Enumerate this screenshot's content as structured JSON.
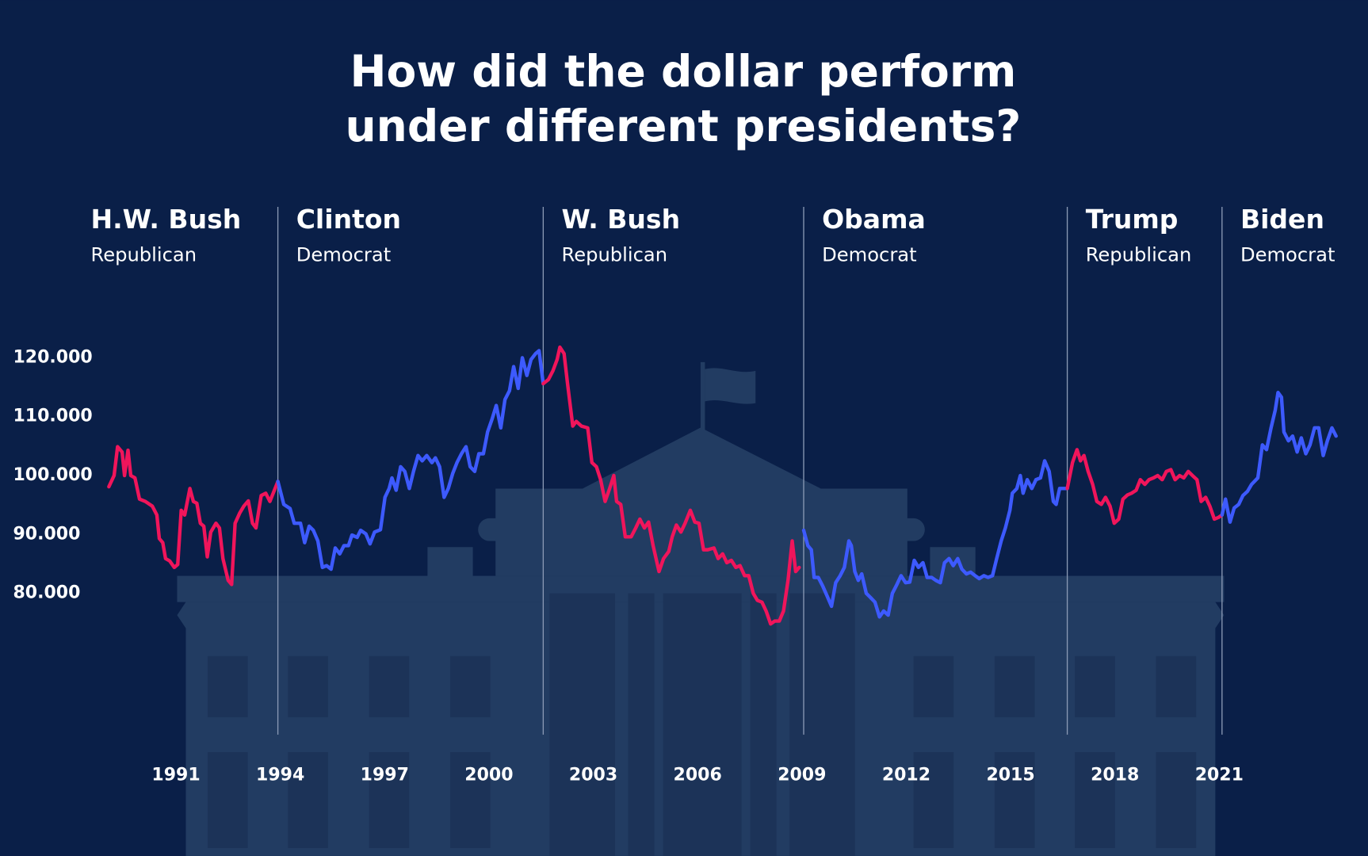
{
  "chart_data": {
    "type": "line",
    "title": [
      "How did the dollar perform",
      "under different presidents?"
    ],
    "xlim": [
      1989,
      2024.5
    ],
    "xticks": [
      1991,
      1994,
      1997,
      2000,
      2003,
      2006,
      2009,
      2012,
      2015,
      2018,
      2021
    ],
    "ylim": [
      60,
      130
    ],
    "yticks": [
      {
        "value": 120,
        "label": "120.000"
      },
      {
        "value": 110,
        "label": "110.000"
      },
      {
        "value": 100,
        "label": "100.000"
      },
      {
        "value": 90,
        "label": "90.000"
      },
      {
        "value": 80,
        "label": "80.000"
      }
    ],
    "grid": false,
    "series": [
      {
        "name": "H.W. Bush",
        "party": "Republican",
        "color": "#f0155b",
        "x": [
          1989.07,
          1989.22,
          1989.32,
          1989.45,
          1989.52,
          1989.62,
          1989.7,
          1989.82,
          1989.95,
          1990.12,
          1990.32,
          1990.45,
          1990.52,
          1990.62,
          1990.7,
          1990.82,
          1990.95,
          1991.05,
          1991.15,
          1991.25,
          1991.4,
          1991.5,
          1991.6,
          1991.7,
          1991.8,
          1991.9,
          1992.0,
          1992.15,
          1992.25,
          1992.35,
          1992.5,
          1992.6,
          1992.7,
          1992.83,
          1992.95,
          1993.08,
          1993.2,
          1993.3,
          1993.45,
          1993.58,
          1993.7,
          1993.93
        ],
        "values": [
          98.1,
          100.0,
          104.9,
          104.0,
          100.0,
          104.3,
          100.0,
          99.6,
          96.0,
          95.6,
          94.8,
          93.3,
          89.3,
          88.6,
          85.9,
          85.5,
          84.4,
          84.9,
          94.1,
          93.3,
          97.8,
          95.6,
          95.3,
          91.9,
          91.4,
          86.2,
          90.4,
          91.9,
          91.1,
          85.9,
          82.2,
          81.5,
          91.9,
          93.6,
          94.8,
          95.7,
          91.9,
          91.1,
          96.6,
          97.0,
          95.6,
          99.0
        ]
      },
      {
        "name": "Clinton",
        "party": "Democrat",
        "color": "#3d5afe",
        "x": [
          1993.93,
          1994.1,
          1994.28,
          1994.4,
          1994.58,
          1994.7,
          1994.83,
          1994.95,
          1995.08,
          1995.21,
          1995.33,
          1995.46,
          1995.58,
          1995.71,
          1995.83,
          1995.96,
          1996.06,
          1996.21,
          1996.31,
          1996.46,
          1996.58,
          1996.71,
          1996.88,
          1997.01,
          1997.13,
          1997.21,
          1997.33,
          1997.46,
          1997.58,
          1997.71,
          1997.83,
          1997.96,
          1998.08,
          1998.21,
          1998.36,
          1998.46,
          1998.58,
          1998.71,
          1998.83,
          1998.96,
          1999.08,
          1999.21,
          1999.34,
          1999.46,
          1999.59,
          1999.71,
          1999.84,
          1999.96,
          2000.09,
          2000.21,
          2000.34,
          2000.46,
          2000.59,
          2000.71,
          2000.84,
          2000.96,
          2001.09,
          2001.21,
          2001.34,
          2001.44,
          2001.56
        ],
        "values": [
          99.0,
          95.1,
          94.4,
          91.9,
          91.9,
          88.6,
          91.4,
          90.7,
          88.9,
          84.4,
          84.7,
          84.1,
          87.7,
          86.7,
          88.1,
          88.1,
          89.9,
          89.5,
          90.7,
          90.1,
          88.4,
          90.4,
          90.8,
          96.3,
          97.8,
          99.6,
          97.5,
          101.5,
          100.7,
          97.8,
          100.7,
          103.4,
          102.5,
          103.4,
          102.2,
          103.0,
          101.5,
          96.3,
          97.8,
          100.4,
          102.2,
          103.7,
          104.9,
          101.5,
          100.7,
          103.7,
          103.7,
          107.4,
          109.6,
          111.9,
          108.1,
          112.9,
          114.4,
          118.5,
          114.8,
          120.0,
          117.0,
          119.7,
          120.7,
          121.2,
          115.6
        ]
      },
      {
        "name": "W. Bush",
        "party": "Republican",
        "color": "#f0155b",
        "x": [
          2001.56,
          2001.71,
          2001.84,
          2001.96,
          2002.04,
          2002.16,
          2002.26,
          2002.41,
          2002.51,
          2002.66,
          2002.84,
          2002.96,
          2003.09,
          2003.21,
          2003.34,
          2003.47,
          2003.59,
          2003.67,
          2003.79,
          2003.92,
          2004.09,
          2004.22,
          2004.34,
          2004.47,
          2004.59,
          2004.72,
          2004.89,
          2005.02,
          2005.17,
          2005.27,
          2005.39,
          2005.52,
          2005.64,
          2005.79,
          2005.92,
          2006.04,
          2006.17,
          2006.29,
          2006.47,
          2006.59,
          2006.72,
          2006.84,
          2006.97,
          2007.1,
          2007.22,
          2007.35,
          2007.47,
          2007.6,
          2007.72,
          2007.85,
          2007.97,
          2008.1,
          2008.22,
          2008.35,
          2008.47,
          2008.6,
          2008.72,
          2008.82,
          2008.92
        ],
        "values": [
          115.6,
          116.3,
          117.8,
          119.7,
          121.8,
          120.7,
          115.6,
          108.4,
          109.2,
          108.4,
          108.1,
          102.2,
          101.5,
          99.3,
          95.6,
          97.8,
          100.0,
          95.6,
          95.1,
          89.6,
          89.6,
          91.1,
          92.6,
          91.1,
          92.1,
          88.1,
          83.7,
          85.9,
          87.1,
          89.6,
          91.6,
          90.4,
          91.9,
          94.1,
          92.1,
          91.9,
          87.4,
          87.4,
          87.7,
          85.9,
          86.7,
          85.2,
          85.6,
          84.4,
          84.7,
          83.0,
          83.0,
          80.0,
          78.8,
          78.5,
          77.0,
          74.8,
          75.3,
          75.3,
          77.0,
          82.2,
          88.9,
          83.7,
          84.4
        ]
      },
      {
        "name": "Obama",
        "party": "Democrat",
        "color": "#3d5afe",
        "x": [
          2009.05,
          2009.17,
          2009.27,
          2009.35,
          2009.47,
          2009.6,
          2009.72,
          2009.85,
          2009.97,
          2010.1,
          2010.22,
          2010.35,
          2010.42,
          2010.52,
          2010.62,
          2010.72,
          2010.85,
          2010.97,
          2011.1,
          2011.23,
          2011.35,
          2011.48,
          2011.6,
          2011.73,
          2011.85,
          2011.98,
          2012.1,
          2012.23,
          2012.35,
          2012.48,
          2012.6,
          2012.73,
          2012.85,
          2012.98,
          2013.1,
          2013.23,
          2013.35,
          2013.48,
          2013.6,
          2013.73,
          2013.85,
          2013.98,
          2014.1,
          2014.23,
          2014.35,
          2014.48,
          2014.6,
          2014.73,
          2014.85,
          2014.98,
          2015.05,
          2015.18,
          2015.28,
          2015.36,
          2015.48,
          2015.61,
          2015.73,
          2015.86,
          2015.98,
          2016.11,
          2016.23,
          2016.31,
          2016.41,
          2016.63
        ],
        "values": [
          90.7,
          88.1,
          87.4,
          82.7,
          82.7,
          81.2,
          79.6,
          77.8,
          81.8,
          83.0,
          84.4,
          88.9,
          88.1,
          83.7,
          82.2,
          83.3,
          80.0,
          79.3,
          78.5,
          76.0,
          77.0,
          76.3,
          80.0,
          81.5,
          83.0,
          81.8,
          81.9,
          85.6,
          84.4,
          85.2,
          82.7,
          82.7,
          82.2,
          81.8,
          85.2,
          85.9,
          84.7,
          85.9,
          84.1,
          83.3,
          83.6,
          83.0,
          82.5,
          83.0,
          82.7,
          83.0,
          85.9,
          88.9,
          91.1,
          94.1,
          97.0,
          97.8,
          100.0,
          97.0,
          99.3,
          97.8,
          99.3,
          99.6,
          102.5,
          100.7,
          95.6,
          95.1,
          97.8,
          97.8
        ]
      },
      {
        "name": "Trump",
        "party": "Republican",
        "color": "#f0155b",
        "x": [
          2016.63,
          2016.78,
          2016.91,
          2017.01,
          2017.11,
          2017.23,
          2017.36,
          2017.48,
          2017.61,
          2017.73,
          2017.86,
          2017.98,
          2018.11,
          2018.23,
          2018.36,
          2018.48,
          2018.61,
          2018.73,
          2018.86,
          2018.98,
          2019.11,
          2019.23,
          2019.36,
          2019.48,
          2019.61,
          2019.73,
          2019.86,
          2019.98,
          2020.11,
          2020.23,
          2020.36,
          2020.48,
          2020.61,
          2020.73,
          2020.86,
          2020.98,
          2021.08
        ],
        "values": [
          97.8,
          102.2,
          104.4,
          102.5,
          103.4,
          100.7,
          98.5,
          95.6,
          95.1,
          96.3,
          94.8,
          91.9,
          92.6,
          96.0,
          96.7,
          97.0,
          97.5,
          99.3,
          98.5,
          99.3,
          99.6,
          100.0,
          99.3,
          100.7,
          101.0,
          99.3,
          100.0,
          99.6,
          100.7,
          100.0,
          99.3,
          95.6,
          96.3,
          94.8,
          92.6,
          92.9,
          93.3
        ]
      },
      {
        "name": "Biden",
        "party": "Democrat",
        "color": "#3d5afe",
        "x": [
          2021.08,
          2021.18,
          2021.31,
          2021.43,
          2021.56,
          2021.68,
          2021.81,
          2021.93,
          2022.11,
          2022.24,
          2022.36,
          2022.49,
          2022.61,
          2022.69,
          2022.79,
          2022.86,
          2022.99,
          2023.11,
          2023.24,
          2023.36,
          2023.49,
          2023.61,
          2023.74,
          2023.86,
          2023.99,
          2024.11,
          2024.24,
          2024.36
        ],
        "values": [
          93.3,
          96.0,
          92.1,
          94.5,
          95.1,
          96.6,
          97.3,
          98.5,
          99.6,
          105.2,
          104.4,
          108.1,
          111.1,
          114.1,
          113.3,
          107.4,
          105.9,
          106.7,
          104.0,
          106.4,
          103.7,
          105.2,
          108.1,
          108.1,
          103.4,
          105.9,
          108.1,
          106.7
        ]
      }
    ]
  }
}
